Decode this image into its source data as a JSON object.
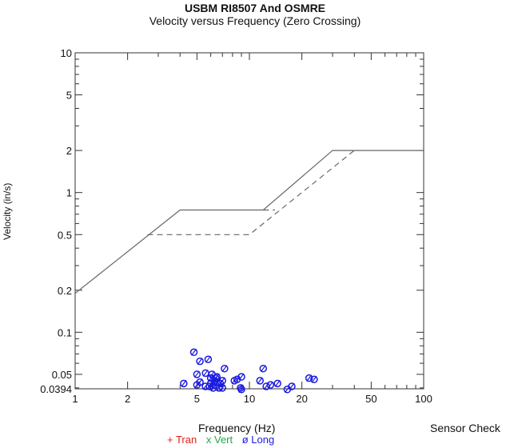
{
  "chart_data": {
    "type": "scatter",
    "title": "USBM RI8507 And OSMRE",
    "subtitle": "Velocity versus Frequency (Zero Crossing)",
    "xlabel": "Frequency (Hz)",
    "ylabel": "Velocity (in/s)",
    "x_scale": "log",
    "y_scale": "log",
    "xlim": [
      1,
      100
    ],
    "ylim": [
      0.0394,
      10
    ],
    "x_ticks": [
      {
        "value": 1,
        "label": "1"
      },
      {
        "value": 2,
        "label": "2"
      },
      {
        "value": 5,
        "label": "5"
      },
      {
        "value": 10,
        "label": "10"
      },
      {
        "value": 20,
        "label": "20"
      },
      {
        "value": 50,
        "label": "50"
      },
      {
        "value": 100,
        "label": "100"
      }
    ],
    "y_ticks": [
      {
        "value": 10,
        "label": "10"
      },
      {
        "value": 5,
        "label": "5"
      },
      {
        "value": 2,
        "label": "2"
      },
      {
        "value": 1,
        "label": "1"
      },
      {
        "value": 0.5,
        "label": "0.5"
      },
      {
        "value": 0.2,
        "label": "0.2"
      },
      {
        "value": 0.1,
        "label": "0.1"
      },
      {
        "value": 0.05,
        "label": "0.05"
      },
      {
        "value": 0.0394,
        "label": "0.0394"
      }
    ],
    "limit_lines": [
      {
        "style": "solid",
        "points": [
          [
            1,
            0.19
          ],
          [
            4,
            0.75
          ],
          [
            12,
            0.75
          ],
          [
            30,
            2.0
          ],
          [
            100,
            2.0
          ]
        ]
      },
      {
        "style": "dashed",
        "points": [
          [
            2.6,
            0.5
          ],
          [
            10,
            0.5
          ],
          [
            40,
            2.0
          ]
        ]
      },
      {
        "style": "dashed",
        "points": [
          [
            12,
            0.75
          ],
          [
            14,
            0.75
          ]
        ]
      }
    ],
    "legend": [
      {
        "symbol": "+",
        "label": "Tran",
        "color": "#e0201b"
      },
      {
        "symbol": "x",
        "label": "Vert",
        "color": "#2aa24a"
      },
      {
        "symbol": "ø",
        "label": "Long",
        "color": "#1a1ae0"
      }
    ],
    "series": [
      {
        "name": "Long",
        "marker": "ø",
        "color": "#1a1ae0",
        "points": [
          [
            4.8,
            0.072
          ],
          [
            5.0,
            0.05
          ],
          [
            5.2,
            0.062
          ],
          [
            5.6,
            0.051
          ],
          [
            5.8,
            0.064
          ],
          [
            6.0,
            0.047
          ],
          [
            6.1,
            0.05
          ],
          [
            6.3,
            0.045
          ],
          [
            6.4,
            0.042
          ],
          [
            6.5,
            0.048
          ],
          [
            6.6,
            0.044
          ],
          [
            6.8,
            0.043
          ],
          [
            7.0,
            0.045
          ],
          [
            7.2,
            0.055
          ],
          [
            7.0,
            0.04
          ],
          [
            5.9,
            0.041
          ],
          [
            6.2,
            0.04
          ],
          [
            6.7,
            0.04
          ],
          [
            5.6,
            0.041
          ],
          [
            5.2,
            0.044
          ],
          [
            4.2,
            0.043
          ],
          [
            5.0,
            0.042
          ],
          [
            6.0,
            0.043
          ],
          [
            6.4,
            0.047
          ],
          [
            8.5,
            0.046
          ],
          [
            8.2,
            0.045
          ],
          [
            9.0,
            0.048
          ],
          [
            9.0,
            0.039
          ],
          [
            8.9,
            0.04
          ],
          [
            11.5,
            0.045
          ],
          [
            12.0,
            0.055
          ],
          [
            12.5,
            0.041
          ],
          [
            13.2,
            0.042
          ],
          [
            14.5,
            0.043
          ],
          [
            16.5,
            0.039
          ],
          [
            17.5,
            0.041
          ],
          [
            22.0,
            0.047
          ],
          [
            23.5,
            0.046
          ]
        ]
      }
    ],
    "grid": false
  },
  "labels": {
    "sensor_check": "Sensor Check"
  }
}
